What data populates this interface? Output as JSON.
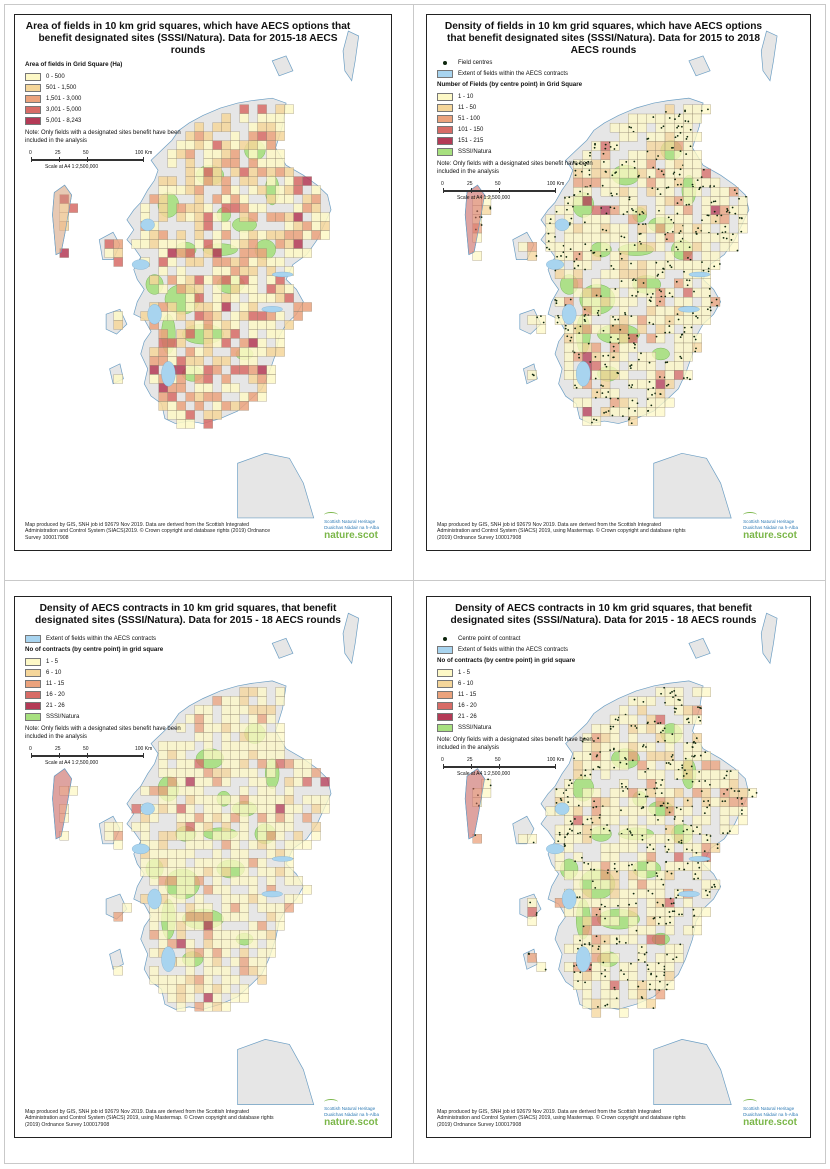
{
  "colors": {
    "land": "#e6e6e6",
    "water": "#a8d4ef",
    "coast": "#6d9fc4",
    "sssi": "#a7e07f",
    "sssi_edge": "#5fa33a",
    "grid_line": "#8a7e6a",
    "dot": "#0d260d",
    "ramp": [
      "#fdf8c6",
      "#f5d69a",
      "#eba27c",
      "#d76b66",
      "#b43a56"
    ]
  },
  "panels": [
    {
      "id": "area",
      "title": "Area of fields in 10 km grid squares, which have AECS options that benefit designated sites (SSSI/Natura). Data for 2015-18 AECS rounds",
      "legend_top": [],
      "legend_header": "Area of fields in Grid Square (Ha)",
      "legend_classes": [
        "0 - 500",
        "501 - 1,500",
        "1,501 - 3,000",
        "3,001 - 5,000",
        "5,001 - 8,243"
      ],
      "sssi_label": "",
      "note": "Note: Only fields with a designated sites benefit have been included in the analysis",
      "scale_labels": [
        "0",
        "25",
        "50",
        "100 Km"
      ],
      "scale_text": "Scale at A4 1:2,500,000",
      "credit": "Map produced by GIS, SNH job id 92679 Nov 2019. Data are derived from the Scottish Integrated Administration and Control System (SIACS)2019. © Crown copyright and database rights (2019) Ordnance Survey 100017908",
      "dots": false,
      "sssi_fill": false
    },
    {
      "id": "fields",
      "title": "Density of fields in 10 km grid squares, which have AECS options that benefit designated sites (SSSI/Natura). Data for 2015 to 2018 AECS rounds",
      "legend_top": [
        "Field centres",
        "Extent of fields within the AECS contracts"
      ],
      "legend_header": "Number of Fields (by centre point) in Grid Square",
      "legend_classes": [
        "1 - 10",
        "11 - 50",
        "51 - 100",
        "101 - 150",
        "151 - 215"
      ],
      "sssi_label": "SSSI/Natura",
      "note": "Note: Only fields with a designated sites benefit have been included in the analysis",
      "scale_labels": [
        "0",
        "25",
        "50",
        "100 Km"
      ],
      "scale_text": "Scale at A4 1:2,500,000",
      "credit": "Map produced by GIS, SNH job id 92679 Nov 2019. Data are derived from the Scottish Integrated Administration and Control System (SIACS) 2019, using Mastermap. © Crown copyright and database rights (2019) Ordnance Survey 100017908",
      "dots": true,
      "sssi_fill": true
    },
    {
      "id": "contracts",
      "title": "Density of AECS contracts in 10 km grid squares, that benefit designated sites (SSSI/Natura). Data for 2015 - 18 AECS rounds",
      "legend_top": [
        "Extent of fields within the AECS contracts"
      ],
      "legend_header": "No of contracts (by centre point) in grid square",
      "legend_classes": [
        "1 - 5",
        "6 - 10",
        "11 - 15",
        "16 - 20",
        "21 - 26"
      ],
      "sssi_label": "SSSI/Natura",
      "note": "Note: Only fields with a designated sites benefit have been included in the analysis",
      "scale_labels": [
        "0",
        "25",
        "50",
        "100 Km"
      ],
      "scale_text": "Scale at A4 1:2,500,000",
      "credit": "Map produced by GIS, SNH job id 92679 Nov 2019. Data are derived from the Scottish Integrated Administration and Control System (SIACS) 2019, using Mastermap. © Crown copyright and database rights (2019) Ordnance Survey 100017908",
      "dots": false,
      "sssi_fill": true
    },
    {
      "id": "contracts-centres",
      "title": "Density of AECS contracts in 10 km grid squares, that benefit designated sites (SSSI/Natura). Data for 2015 - 18 AECS rounds",
      "legend_top": [
        "Centre point of contract",
        "Extent of fields within the AECS contracts"
      ],
      "legend_header": "No of contracts (by centre point) in grid square",
      "legend_classes": [
        "1 - 5",
        "6 - 10",
        "11 - 15",
        "16 - 20",
        "21 - 26"
      ],
      "sssi_label": "SSSI/Natura",
      "note": "Note: Only fields with a designated sites benefit have been included in the analysis",
      "scale_labels": [
        "0",
        "25",
        "50",
        "100 Km"
      ],
      "scale_text": "Scale at A4 1:2,500,000",
      "credit": "Map produced by GIS, SNH job id 92679 Nov 2019. Data are derived from the Scottish Integrated Administration and Control System (SIACS) 2019, using Mastermap. © Crown copyright and database rights (2019) Ordnance Survey 100017908",
      "dots": true,
      "sssi_fill": true
    }
  ],
  "logo": {
    "line1": "Scottish Natural Heritage",
    "line2": "Dualchas Nàdair na h-Alba",
    "brand": "nature.scot"
  }
}
